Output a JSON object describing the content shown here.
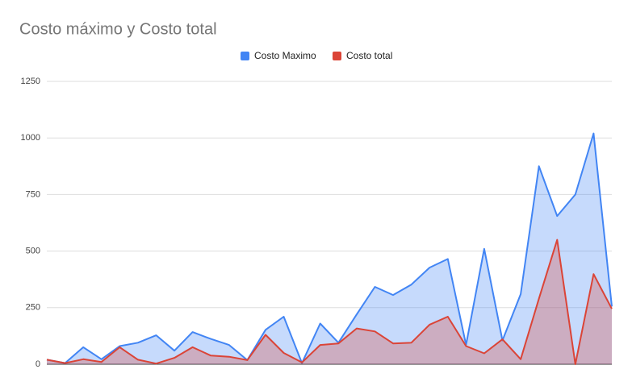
{
  "chart_data": {
    "type": "area",
    "title": "Costo máximo y Costo total",
    "series": [
      {
        "name": "Costo Maximo",
        "color": "#4285f4",
        "values": [
          20,
          5,
          75,
          22,
          80,
          95,
          128,
          60,
          142,
          112,
          85,
          18,
          152,
          210,
          5,
          180,
          95,
          220,
          342,
          306,
          352,
          427,
          465,
          85,
          510,
          105,
          310,
          875,
          655,
          750,
          1020,
          255
        ]
      },
      {
        "name": "Costo total",
        "color": "#db4437",
        "values": [
          20,
          5,
          22,
          10,
          75,
          20,
          3,
          28,
          75,
          38,
          33,
          18,
          130,
          50,
          8,
          85,
          92,
          158,
          145,
          92,
          95,
          175,
          210,
          80,
          48,
          110,
          22,
          290,
          550,
          0,
          398,
          245
        ]
      }
    ],
    "ylim": [
      0,
      1250
    ],
    "yticks": [
      0,
      250,
      500,
      750,
      1000,
      1250
    ],
    "grid": true,
    "legend": "top"
  }
}
